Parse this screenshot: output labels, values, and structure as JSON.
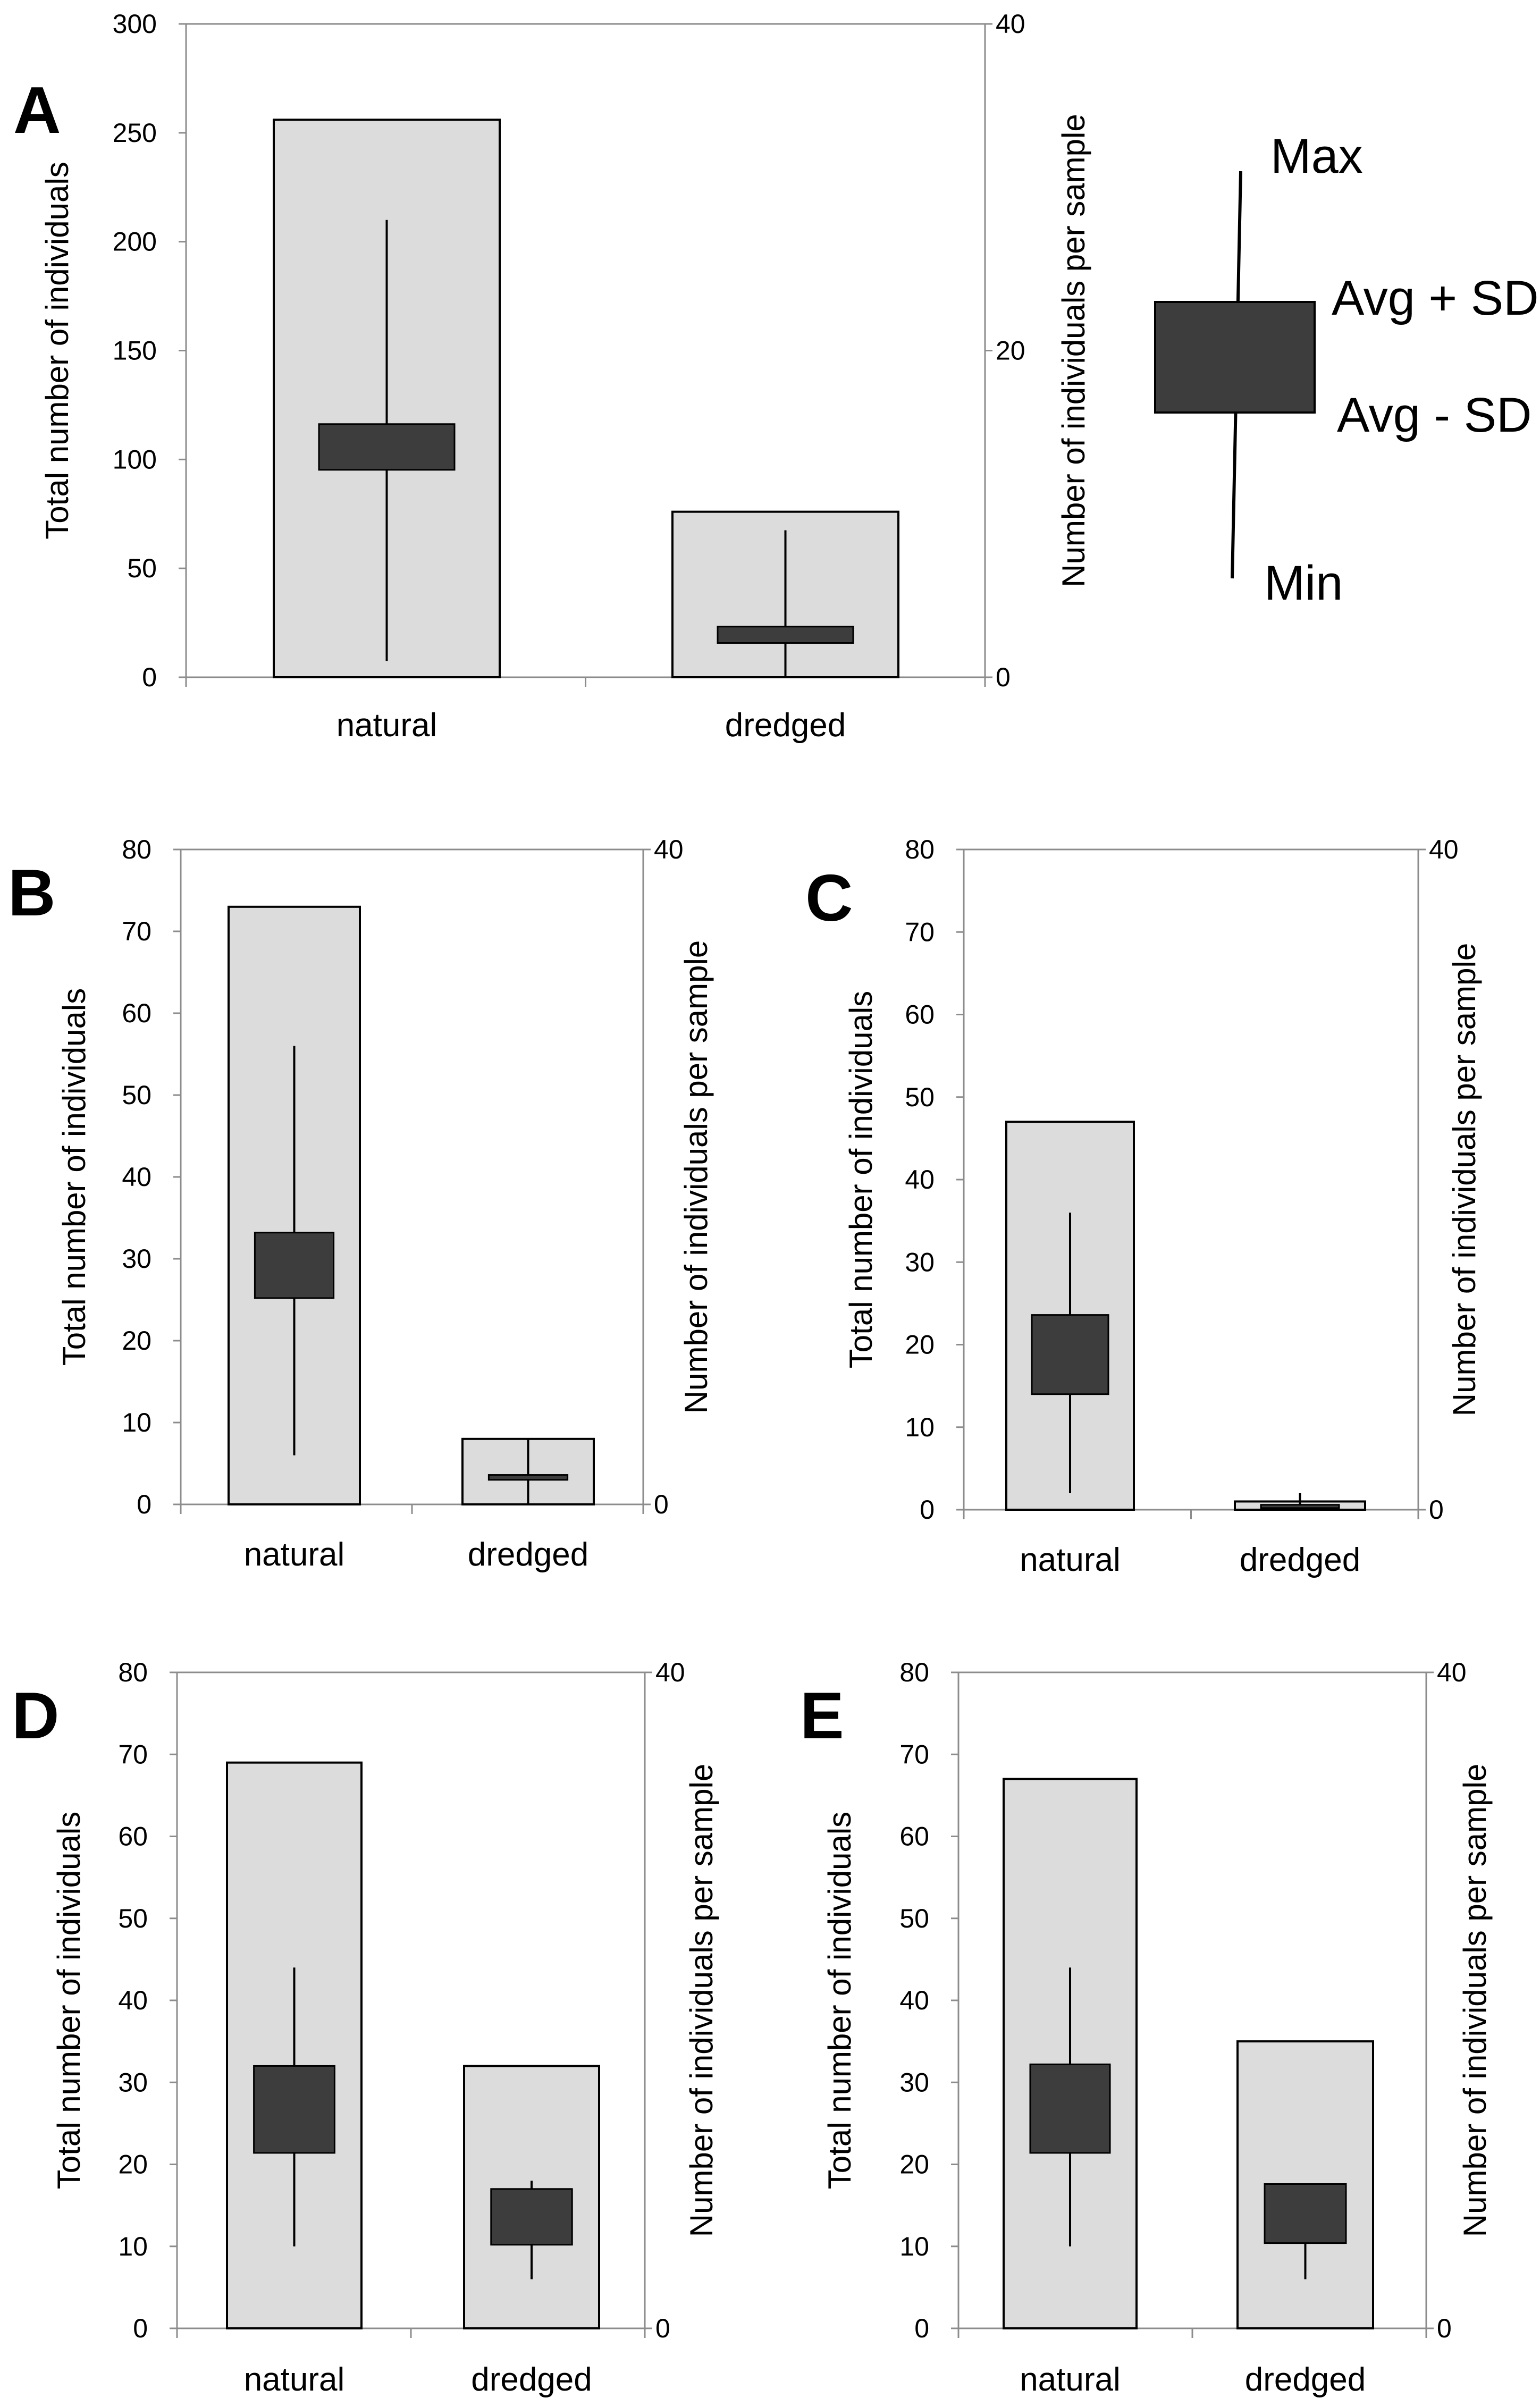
{
  "figure": {
    "legend": {
      "max_label": "Max",
      "avg_plus_sd_label": "Avg + SD",
      "avg_minus_sd_label": "Avg - SD",
      "min_label": "Min"
    }
  },
  "chart_data": [
    {
      "panel": "A",
      "type": "bar",
      "categories": [
        "natural",
        "dredged"
      ],
      "series": [
        {
          "name": "Total number of individuals",
          "axis": "left",
          "values": [
            256,
            76
          ]
        },
        {
          "name": "Number of individuals per sample",
          "axis": "right",
          "kind": "box",
          "min": [
            1,
            0
          ],
          "avg_minus_sd": [
            12.7,
            2.1
          ],
          "avg_plus_sd": [
            15.5,
            3.1
          ],
          "max": [
            28,
            9
          ]
        }
      ],
      "ylabel_left": "Total number of individuals",
      "ylabel_right": "Number of individuals per sample",
      "ylim_left": [
        0,
        300
      ],
      "ylim_right": [
        0,
        40
      ],
      "yticks_left": [
        "0",
        "50",
        "100",
        "150",
        "200",
        "250",
        "300"
      ],
      "yticks_right": [
        "0",
        "20",
        "40"
      ]
    },
    {
      "panel": "B",
      "type": "bar",
      "categories": [
        "natural",
        "dredged"
      ],
      "series": [
        {
          "name": "Total number of individuals",
          "axis": "left",
          "values": [
            73,
            8
          ]
        },
        {
          "name": "Number of individuals per sample",
          "axis": "right",
          "kind": "box",
          "min": [
            3,
            0
          ],
          "avg_minus_sd": [
            12.6,
            1.5
          ],
          "avg_plus_sd": [
            16.6,
            1.8
          ],
          "max": [
            28,
            4
          ]
        }
      ],
      "ylabel_left": "Total number of individuals",
      "ylabel_right": "Number of individuals per sample",
      "ylim_left": [
        0,
        80
      ],
      "ylim_right": [
        0,
        40
      ],
      "yticks_left": [
        "0",
        "10",
        "20",
        "30",
        "40",
        "50",
        "60",
        "70",
        "80"
      ],
      "yticks_right": [
        "0",
        "40"
      ]
    },
    {
      "panel": "C",
      "type": "bar",
      "categories": [
        "natural",
        "dredged"
      ],
      "series": [
        {
          "name": "Total number of individuals",
          "axis": "left",
          "values": [
            47,
            1
          ]
        },
        {
          "name": "Number of individuals per sample",
          "axis": "right",
          "kind": "box",
          "min": [
            1,
            0
          ],
          "avg_minus_sd": [
            7,
            0.1
          ],
          "avg_plus_sd": [
            11.8,
            0.3
          ],
          "max": [
            18,
            1
          ]
        }
      ],
      "ylabel_left": "Total number of individuals",
      "ylabel_right": "Number of individuals per sample",
      "ylim_left": [
        0,
        80
      ],
      "ylim_right": [
        0,
        40
      ],
      "yticks_left": [
        "0",
        "10",
        "20",
        "30",
        "40",
        "50",
        "60",
        "70",
        "80"
      ],
      "yticks_right": [
        "0",
        "40"
      ]
    },
    {
      "panel": "D",
      "type": "bar",
      "categories": [
        "natural",
        "dredged"
      ],
      "series": [
        {
          "name": "Total number of individuals",
          "axis": "left",
          "values": [
            69,
            32
          ]
        },
        {
          "name": "Number of individuals per sample",
          "axis": "right",
          "kind": "box",
          "min": [
            5,
            3
          ],
          "avg_minus_sd": [
            10.7,
            5.1
          ],
          "avg_plus_sd": [
            16,
            8.5
          ],
          "max": [
            22,
            9
          ]
        }
      ],
      "ylabel_left": "Total number of individuals",
      "ylabel_right": "Number of individuals per sample",
      "ylim_left": [
        0,
        80
      ],
      "ylim_right": [
        0,
        40
      ],
      "yticks_left": [
        "0",
        "10",
        "20",
        "30",
        "40",
        "50",
        "60",
        "70",
        "80"
      ],
      "yticks_right": [
        "0",
        "40"
      ]
    },
    {
      "panel": "E",
      "type": "bar",
      "categories": [
        "natural",
        "dredged"
      ],
      "series": [
        {
          "name": "Total number of individuals",
          "axis": "left",
          "values": [
            67,
            35
          ]
        },
        {
          "name": "Number of individuals per sample",
          "axis": "right",
          "kind": "box",
          "min": [
            5,
            3
          ],
          "avg_minus_sd": [
            10.7,
            5.2
          ],
          "avg_plus_sd": [
            16.1,
            8.8
          ],
          "max": [
            22,
            8.8
          ]
        }
      ],
      "ylabel_left": "Total number of individuals",
      "ylabel_right": "Number of individuals per sample",
      "ylim_left": [
        0,
        80
      ],
      "ylim_right": [
        0,
        40
      ],
      "yticks_left": [
        "0",
        "10",
        "20",
        "30",
        "40",
        "50",
        "60",
        "70",
        "80"
      ],
      "yticks_right": [
        "0",
        "40"
      ]
    }
  ]
}
